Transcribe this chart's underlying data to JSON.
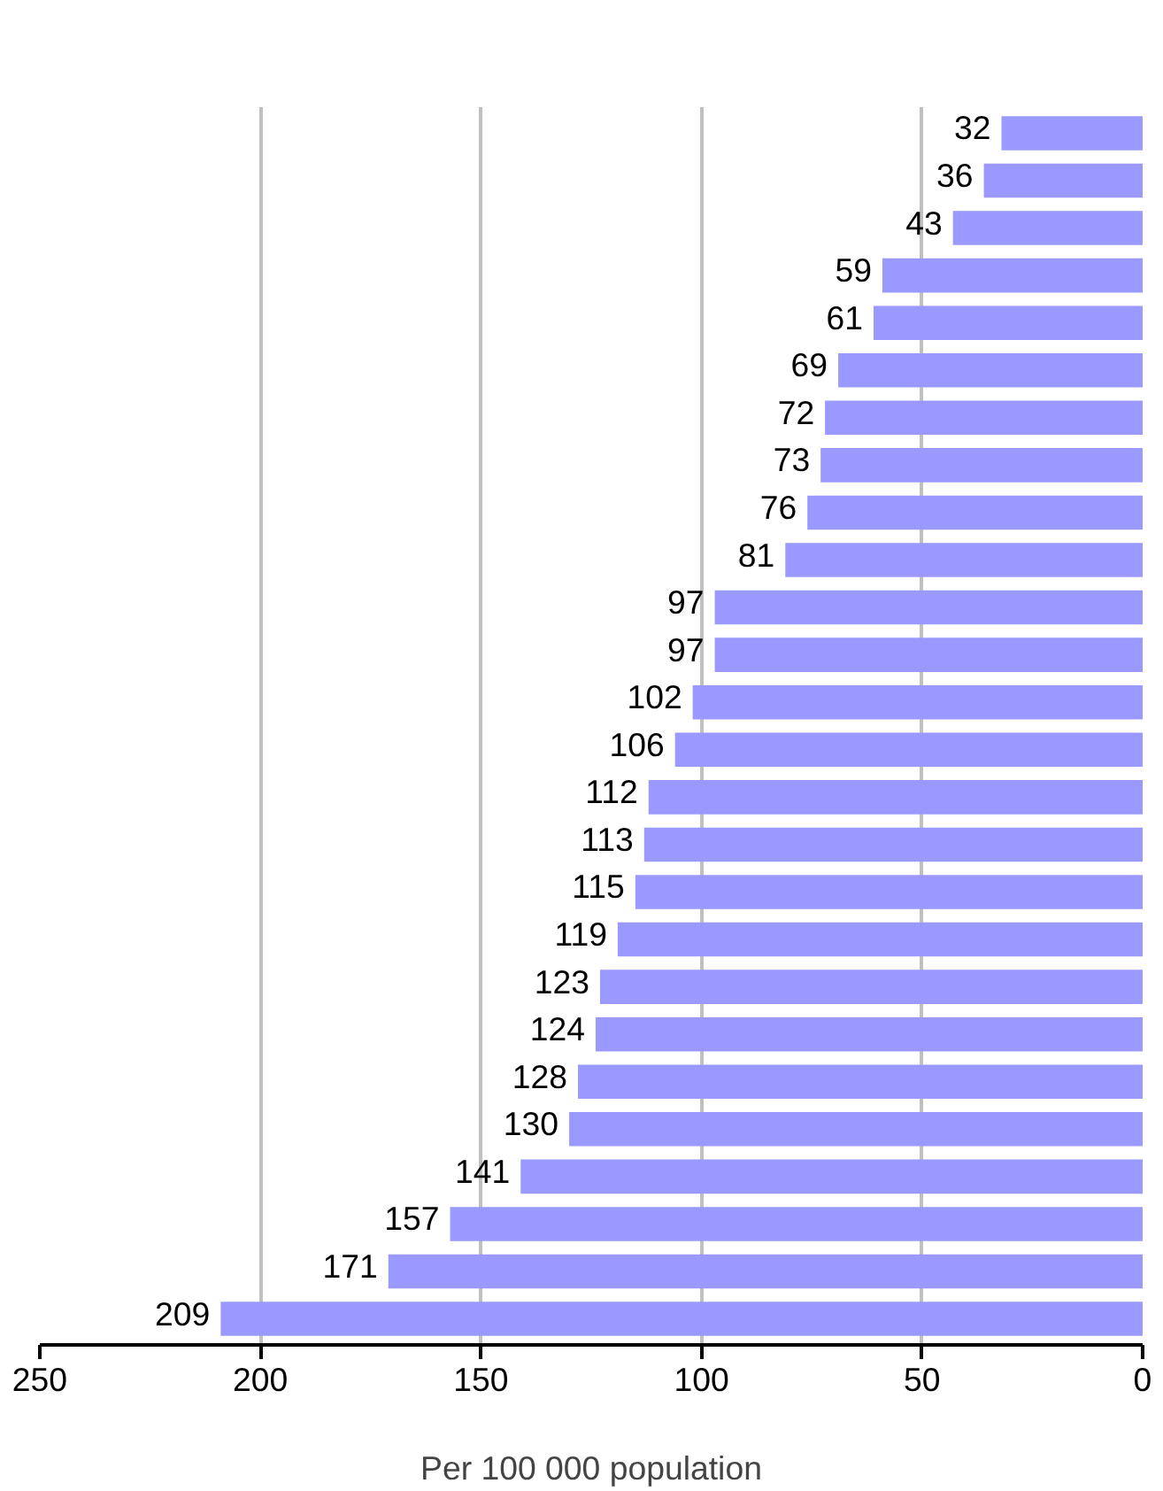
{
  "chart_data": {
    "type": "bar",
    "orientation": "horizontal",
    "xlabel": "Per 100 000 population",
    "categories": [
      null,
      null,
      null,
      null,
      null,
      null,
      null,
      null,
      null,
      null,
      null,
      null,
      null,
      null,
      null,
      null,
      null,
      null,
      null,
      null,
      null,
      null,
      null,
      null,
      null,
      null
    ],
    "values": [
      32,
      36,
      43,
      59,
      61,
      69,
      72,
      73,
      76,
      81,
      97,
      97,
      102,
      106,
      112,
      113,
      115,
      119,
      123,
      124,
      128,
      130,
      141,
      157,
      171,
      209
    ],
    "color": "#9999ff",
    "xlim": [
      250,
      0
    ],
    "xticks": [
      250,
      200,
      150,
      100,
      50,
      0
    ],
    "grid": "x",
    "data_labels": true
  }
}
